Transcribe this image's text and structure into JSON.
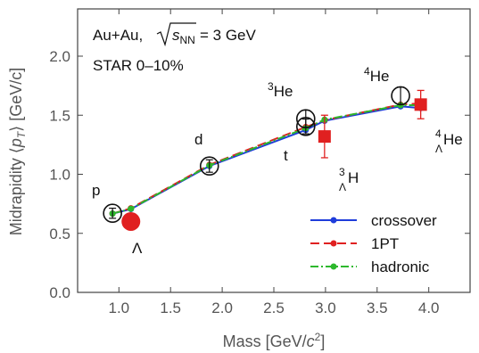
{
  "chart_data": {
    "type": "line",
    "xlabel_main": "Mass [GeV/",
    "xlabel_c": "c",
    "xlabel_sup": "2",
    "xlabel_end": "]",
    "ylabel_main": "Midrapidity ⟨",
    "ylabel_p": "p",
    "ylabel_sub": "T",
    "ylabel_end": "⟩ [GeV/c]",
    "xlim": [
      0.6,
      4.4
    ],
    "ylim": [
      0.0,
      2.4
    ],
    "xticks": [
      "1.0",
      "1.5",
      "2.0",
      "2.5",
      "3.0",
      "3.5",
      "4.0"
    ],
    "xtick_values": [
      1.0,
      1.5,
      2.0,
      2.5,
      3.0,
      3.5,
      4.0
    ],
    "yticks": [
      "0.0",
      "0.5",
      "1.0",
      "1.5",
      "2.0"
    ],
    "ytick_values": [
      0.0,
      0.5,
      1.0,
      1.5,
      2.0
    ],
    "system_label_prefix": "Au+Au,",
    "sqrt_s_label": "s",
    "sqrt_s_sub": "NN",
    "energy_label": "= 3 GeV",
    "centrality_label": "STAR 0–10%",
    "series": [
      {
        "name": "crossover",
        "color": "#1f3ddb",
        "dash": "solid",
        "x": [
          0.938,
          1.116,
          1.876,
          2.809,
          2.991,
          3.727,
          3.922
        ],
        "y": [
          0.667,
          0.705,
          1.07,
          1.375,
          1.453,
          1.575,
          1.56
        ]
      },
      {
        "name": "1PT",
        "color": "#e02020",
        "dash": "long",
        "x": [
          0.938,
          1.116,
          1.876,
          2.809,
          2.991,
          3.727,
          3.922
        ],
        "y": [
          0.667,
          0.712,
          1.08,
          1.4,
          1.458,
          1.59,
          1.6
        ]
      },
      {
        "name": "hadronic",
        "color": "#2db82d",
        "dash": "dashdot",
        "x": [
          0.938,
          1.116,
          1.876,
          2.809,
          2.991,
          3.727,
          3.922
        ],
        "y": [
          0.667,
          0.708,
          1.075,
          1.39,
          1.462,
          1.585,
          1.585
        ]
      }
    ],
    "data_circles": [
      {
        "label": "p",
        "x": 0.938,
        "y": 0.67,
        "err": 0.02
      },
      {
        "label": "d",
        "x": 1.876,
        "y": 1.07,
        "err": 0.03
      },
      {
        "label": "t",
        "x": 2.809,
        "y": 1.405,
        "err": 0.04
      },
      {
        "label": "3He",
        "x": 2.809,
        "y": 1.47,
        "err": 0.05
      },
      {
        "label": "4He",
        "x": 3.727,
        "y": 1.665,
        "err": 0.05
      }
    ],
    "data_squares": [
      {
        "label": "Λ",
        "x": 1.116,
        "y": 0.6,
        "err": 0.0,
        "big_marker": true
      },
      {
        "label": "3ΛH",
        "x": 2.991,
        "y": 1.32,
        "err": 0.18
      },
      {
        "label": "4ΛHe",
        "x": 3.922,
        "y": 1.59,
        "err": 0.12
      }
    ],
    "annotations": {
      "p": "p",
      "d": "d",
      "t": "t",
      "lambda": "Λ",
      "he3_sup": "3",
      "he3": "He",
      "he4_sup": "4",
      "he4": "He",
      "h3l_sup": "3",
      "h3l_sub": "Λ",
      "h3l": "H",
      "he4l_sup": "4",
      "he4l_sub": "Λ",
      "he4l": "He"
    },
    "legend_placement": "bottom-right",
    "grid": false
  }
}
